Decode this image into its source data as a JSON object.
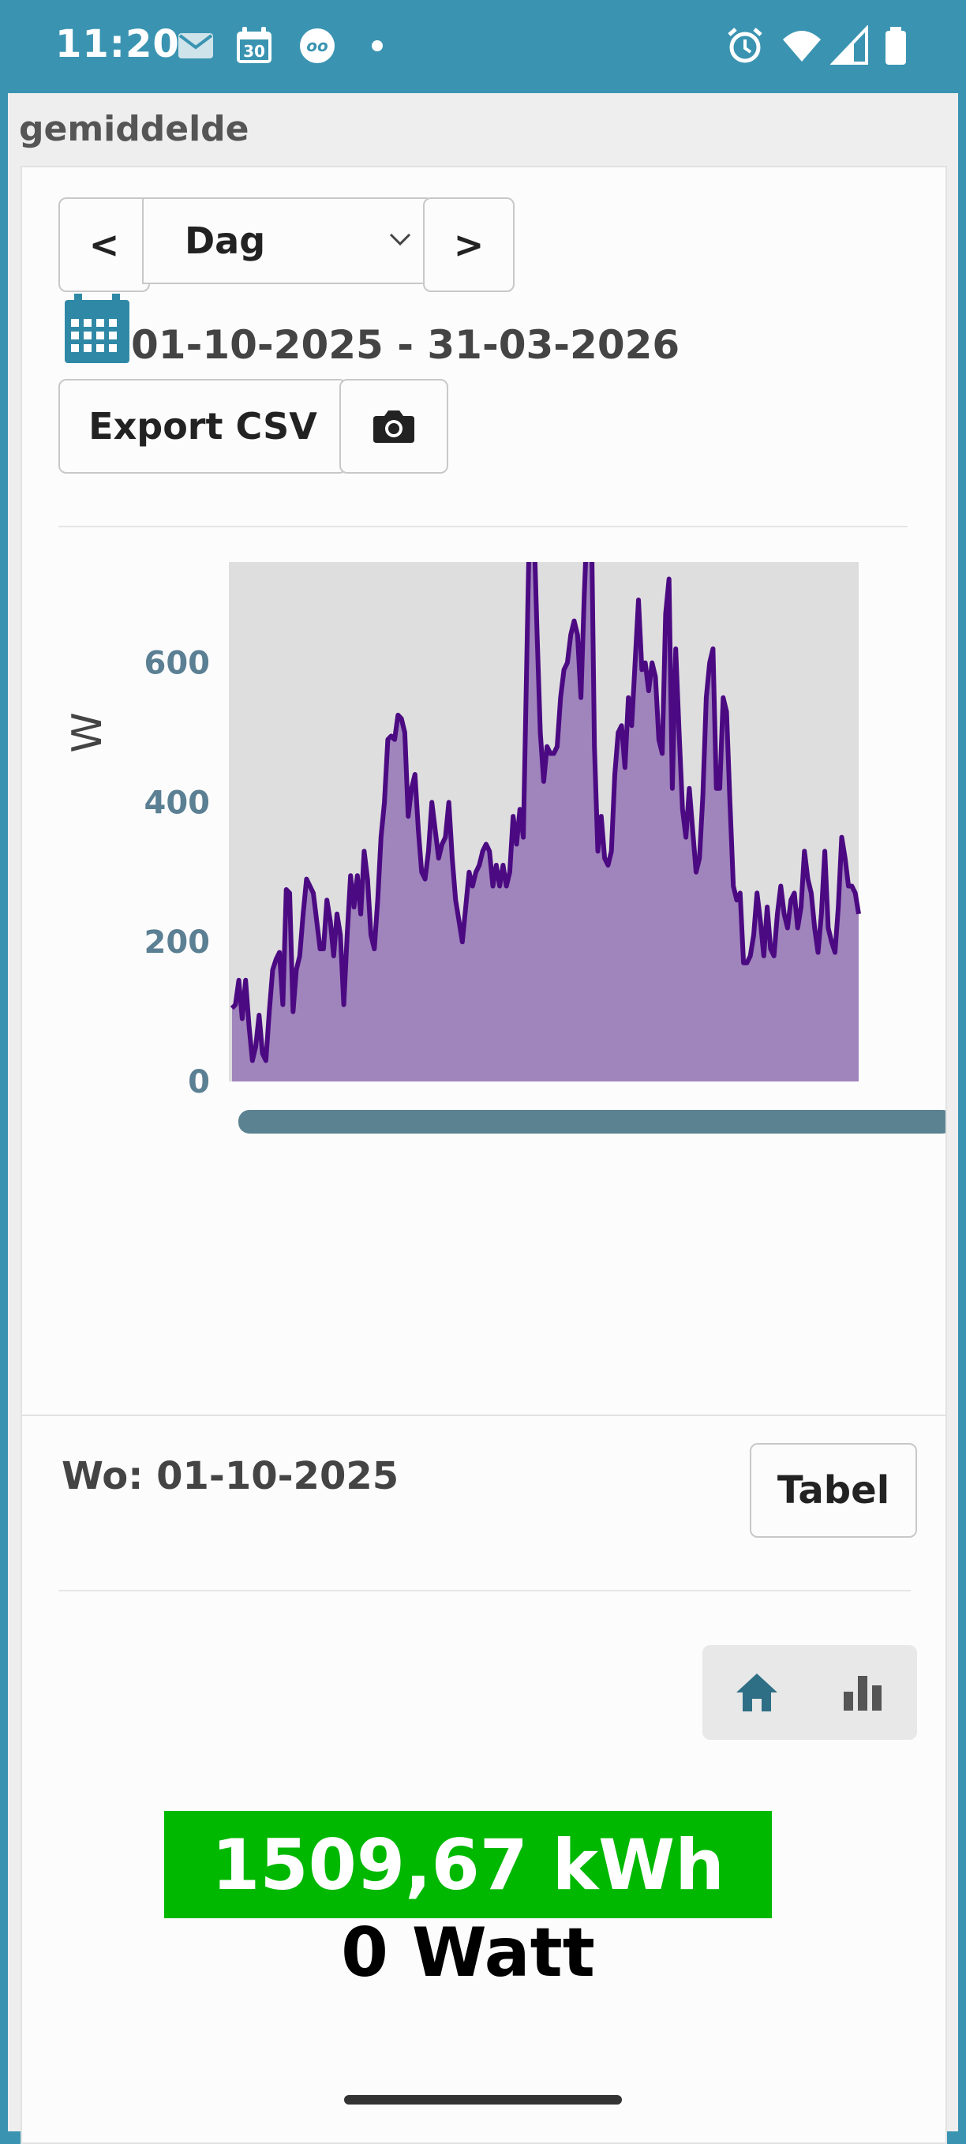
{
  "status_bar": {
    "time": "11:20",
    "calendar_day": "30",
    "icons": [
      "mail-icon",
      "calendar-icon",
      "voicemail-icon",
      "dot-icon",
      "alarm-icon",
      "wifi-icon",
      "signal-icon",
      "battery-icon"
    ]
  },
  "page": {
    "title": "gemiddelde"
  },
  "controls": {
    "prev_label": "<",
    "period_select": "Dag",
    "next_label": ">",
    "date_range": "01-10-2025 - 31-03-2026",
    "export_label": "Export CSV",
    "camera_icon": "camera-icon",
    "calendar_icon": "calendar-icon"
  },
  "chart_data": {
    "type": "area",
    "ylabel": "W",
    "ylim": [
      0,
      1000
    ],
    "yticks": [
      "0",
      "200",
      "400",
      "600",
      "800",
      "1000"
    ],
    "x_range": [
      "01-10-2025",
      "31-03-2026"
    ],
    "fill_color": "#a084bc",
    "line_color": "#4b0a82",
    "plot_background": "#dedede",
    "values": [
      105,
      110,
      145,
      90,
      145,
      80,
      30,
      50,
      95,
      40,
      30,
      100,
      160,
      175,
      185,
      110,
      275,
      270,
      100,
      160,
      180,
      240,
      290,
      280,
      270,
      230,
      190,
      190,
      260,
      230,
      180,
      240,
      210,
      110,
      210,
      295,
      250,
      295,
      240,
      330,
      290,
      210,
      190,
      260,
      350,
      400,
      490,
      495,
      490,
      525,
      520,
      500,
      380,
      420,
      440,
      360,
      300,
      290,
      330,
      400,
      360,
      320,
      340,
      350,
      400,
      320,
      260,
      230,
      200,
      250,
      300,
      280,
      300,
      310,
      330,
      340,
      330,
      280,
      310,
      280,
      310,
      280,
      300,
      380,
      340,
      390,
      350,
      600,
      850,
      820,
      650,
      500,
      430,
      480,
      470,
      470,
      480,
      550,
      590,
      600,
      640,
      660,
      640,
      550,
      700,
      820,
      850,
      480,
      330,
      380,
      320,
      310,
      330,
      440,
      500,
      510,
      450,
      550,
      510,
      600,
      690,
      590,
      600,
      560,
      600,
      580,
      490,
      470,
      670,
      720,
      420,
      620,
      500,
      390,
      350,
      420,
      360,
      300,
      320,
      410,
      550,
      600,
      620,
      420,
      420,
      550,
      530,
      400,
      280,
      260,
      270,
      170,
      170,
      180,
      210,
      270,
      230,
      180,
      250,
      190,
      180,
      240,
      280,
      240,
      220,
      260,
      270,
      220,
      250,
      330,
      290,
      270,
      220,
      185,
      240,
      330,
      220,
      200,
      185,
      250,
      350,
      320,
      280,
      280,
      270,
      240
    ]
  },
  "detail": {
    "day_label": "Wo: 01-10-2025",
    "table_button": "Tabel",
    "home_icon": "home-icon",
    "bar_chart_icon": "bar-chart-icon",
    "energy": "1509,67 kWh",
    "power": "0 Watt",
    "energy_color": "#00b800"
  }
}
